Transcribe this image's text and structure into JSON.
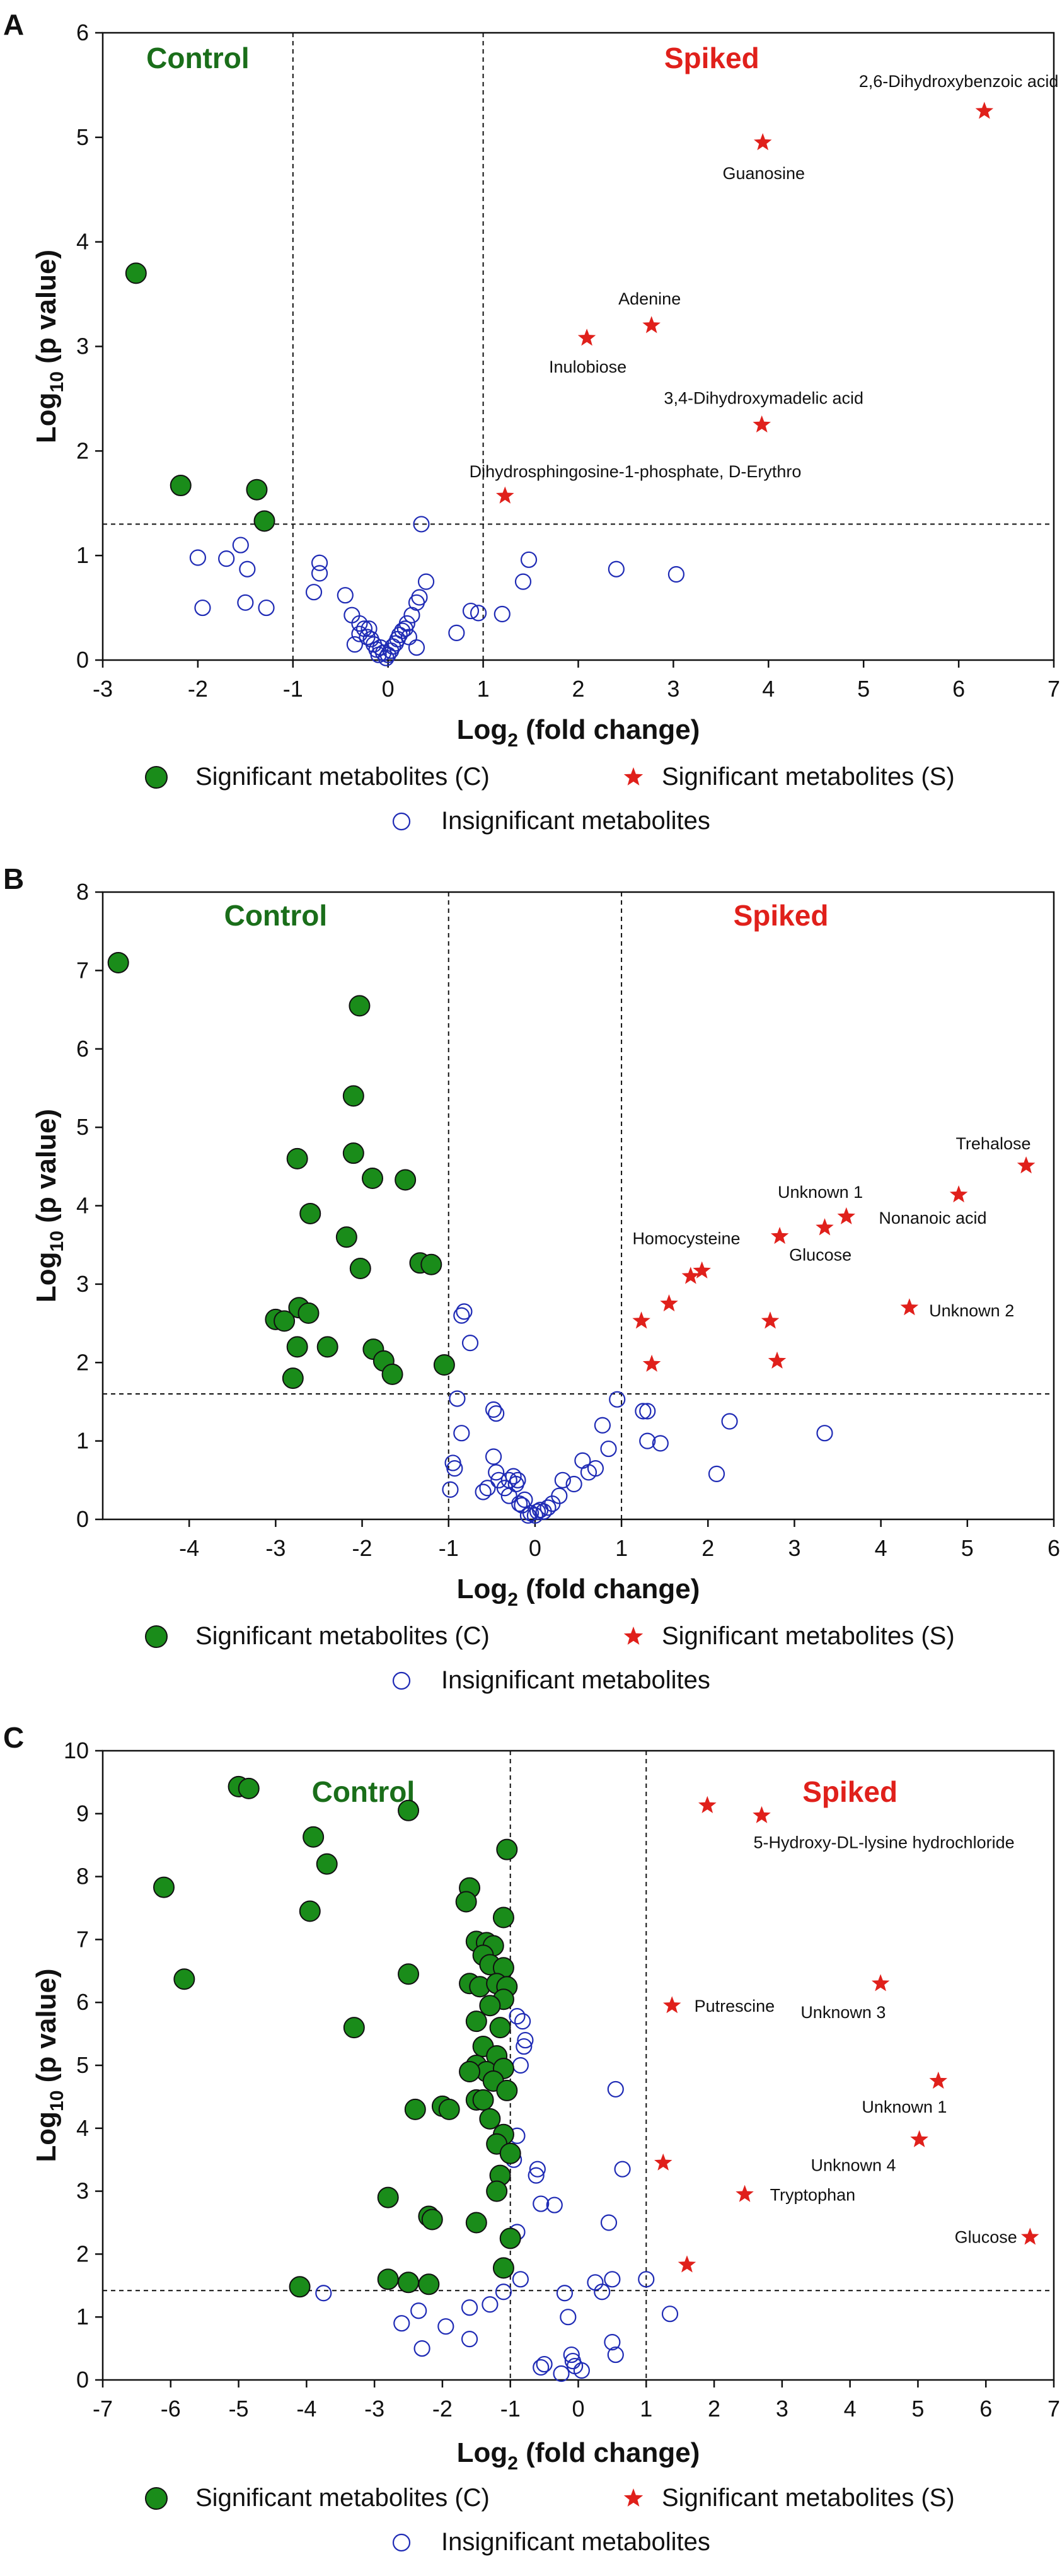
{
  "legend": {
    "control": "Significant metabolites (C)",
    "spiked": "Significant metabolites (S)",
    "insignificant": "Insignificant metabolites"
  },
  "colors": {
    "control": "#1a8c1a",
    "control_text": "#1a6e1a",
    "spiked": "#e0201b",
    "insignificant": "#1f2bb5"
  },
  "chart_data": [
    {
      "type": "scatter",
      "panel": "A",
      "xlabel_main": "Log",
      "xlabel_sub": "2",
      "xlabel_rest": " (fold change)",
      "ylabel_main": "Log",
      "ylabel_sub": "10",
      "ylabel_rest": " (p value)",
      "xlim": [
        -3,
        7
      ],
      "ylim": [
        0,
        6
      ],
      "xticks": [
        -3,
        -2,
        -1,
        0,
        1,
        2,
        3,
        4,
        5,
        6,
        7
      ],
      "yticks": [
        0,
        1,
        2,
        3,
        4,
        5,
        6
      ],
      "vlines": [
        -1,
        1
      ],
      "hline": 1.3,
      "control_label": "Control",
      "spiked_label": "Spiked",
      "control_points": [
        [
          -2.65,
          3.7
        ],
        [
          -2.18,
          1.67
        ],
        [
          -1.38,
          1.63
        ],
        [
          -1.3,
          1.33
        ]
      ],
      "spiked_points": [
        [
          6.27,
          5.25
        ],
        [
          3.94,
          4.95
        ],
        [
          2.77,
          3.2
        ],
        [
          2.09,
          3.08
        ],
        [
          3.93,
          2.25
        ],
        [
          1.23,
          1.57
        ]
      ],
      "annotations": [
        {
          "text": "2,6-Dihydroxybenzoic acid",
          "x": 6.0,
          "y": 5.48,
          "anchor": "middle"
        },
        {
          "text": "Guanosine",
          "x": 3.95,
          "y": 4.6,
          "anchor": "middle"
        },
        {
          "text": "Adenine",
          "x": 2.75,
          "y": 3.4,
          "anchor": "middle"
        },
        {
          "text": "Inulobiose",
          "x": 2.1,
          "y": 2.75,
          "anchor": "middle"
        },
        {
          "text": "3,4-Dihydroxymadelic acid",
          "x": 3.95,
          "y": 2.45,
          "anchor": "middle"
        },
        {
          "text": "Dihydrosphingosine-1-phosphate, D-Erythro",
          "x": 2.6,
          "y": 1.75,
          "anchor": "middle"
        }
      ],
      "insignificant_points": [
        [
          -2.0,
          0.98
        ],
        [
          -1.55,
          1.1
        ],
        [
          -1.7,
          0.97
        ],
        [
          -1.48,
          0.87
        ],
        [
          -1.95,
          0.5
        ],
        [
          -1.5,
          0.55
        ],
        [
          -1.28,
          0.5
        ],
        [
          -0.72,
          0.93
        ],
        [
          -0.72,
          0.83
        ],
        [
          -0.78,
          0.65
        ],
        [
          -0.45,
          0.62
        ],
        [
          -0.38,
          0.43
        ],
        [
          -0.3,
          0.35
        ],
        [
          -0.25,
          0.3
        ],
        [
          -0.22,
          0.22
        ],
        [
          -0.18,
          0.2
        ],
        [
          -0.15,
          0.15
        ],
        [
          -0.12,
          0.1
        ],
        [
          -0.1,
          0.05
        ],
        [
          -0.08,
          0.12
        ],
        [
          -0.05,
          0.07
        ],
        [
          -0.02,
          0.02
        ],
        [
          0.0,
          0.05
        ],
        [
          0.03,
          0.09
        ],
        [
          0.05,
          0.13
        ],
        [
          0.08,
          0.16
        ],
        [
          0.1,
          0.2
        ],
        [
          0.12,
          0.24
        ],
        [
          0.15,
          0.28
        ],
        [
          0.18,
          0.3
        ],
        [
          0.2,
          0.35
        ],
        [
          0.25,
          0.43
        ],
        [
          0.3,
          0.55
        ],
        [
          0.33,
          0.6
        ],
        [
          0.35,
          1.3
        ],
        [
          0.4,
          0.75
        ],
        [
          -0.3,
          0.25
        ],
        [
          -0.2,
          0.3
        ],
        [
          0.22,
          0.22
        ],
        [
          -0.35,
          0.15
        ],
        [
          0.3,
          0.12
        ],
        [
          0.72,
          0.26
        ],
        [
          0.87,
          0.47
        ],
        [
          0.95,
          0.45
        ],
        [
          1.2,
          0.44
        ],
        [
          1.42,
          0.75
        ],
        [
          1.48,
          0.96
        ],
        [
          2.4,
          0.87
        ],
        [
          3.03,
          0.82
        ]
      ]
    },
    {
      "type": "scatter",
      "panel": "B",
      "xlabel_main": "Log",
      "xlabel_sub": "2",
      "xlabel_rest": " (fold change)",
      "ylabel_main": "Log",
      "ylabel_sub": "10",
      "ylabel_rest": " (p value)",
      "xlim": [
        -5,
        6
      ],
      "ylim": [
        0,
        8
      ],
      "xticks": [
        -4,
        -3,
        -2,
        -1,
        0,
        1,
        2,
        3,
        4,
        5,
        6
      ],
      "yticks": [
        0,
        1,
        2,
        3,
        4,
        5,
        6,
        7,
        8
      ],
      "vlines": [
        -1,
        1
      ],
      "hline": 1.6,
      "control_label": "Control",
      "spiked_label": "Spiked",
      "control_points": [
        [
          -4.82,
          7.1
        ],
        [
          -2.03,
          6.55
        ],
        [
          -2.1,
          5.4
        ],
        [
          -2.1,
          4.67
        ],
        [
          -2.75,
          4.6
        ],
        [
          -1.88,
          4.35
        ],
        [
          -1.5,
          4.33
        ],
        [
          -2.6,
          3.9
        ],
        [
          -2.18,
          3.6
        ],
        [
          -2.02,
          3.2
        ],
        [
          -1.33,
          3.27
        ],
        [
          -1.2,
          3.25
        ],
        [
          -2.73,
          2.7
        ],
        [
          -2.62,
          2.63
        ],
        [
          -3.0,
          2.55
        ],
        [
          -2.9,
          2.53
        ],
        [
          -2.75,
          2.2
        ],
        [
          -2.4,
          2.2
        ],
        [
          -1.87,
          2.17
        ],
        [
          -1.75,
          2.02
        ],
        [
          -1.65,
          1.85
        ],
        [
          -2.8,
          1.8
        ],
        [
          -1.05,
          1.97
        ]
      ],
      "spiked_points": [
        [
          5.68,
          4.51
        ],
        [
          4.9,
          4.14
        ],
        [
          3.6,
          3.86
        ],
        [
          3.35,
          3.72
        ],
        [
          2.83,
          3.61
        ],
        [
          1.93,
          3.17
        ],
        [
          1.8,
          3.1
        ],
        [
          1.55,
          2.75
        ],
        [
          4.33,
          2.7
        ],
        [
          1.23,
          2.53
        ],
        [
          2.72,
          2.53
        ],
        [
          1.35,
          1.98
        ],
        [
          2.8,
          2.02
        ]
      ],
      "annotations": [
        {
          "text": "Trehalose",
          "x": 5.3,
          "y": 4.72,
          "anchor": "middle"
        },
        {
          "text": "Unknown 1",
          "x": 3.3,
          "y": 4.1,
          "anchor": "middle"
        },
        {
          "text": "Nonanoic acid",
          "x": 4.6,
          "y": 3.77,
          "anchor": "middle"
        },
        {
          "text": "Homocysteine",
          "x": 1.75,
          "y": 3.51,
          "anchor": "middle"
        },
        {
          "text": "Glucose",
          "x": 3.3,
          "y": 3.3,
          "anchor": "middle"
        },
        {
          "text": "Unknown 2",
          "x": 5.05,
          "y": 2.59,
          "anchor": "middle"
        }
      ],
      "insignificant_points": [
        [
          -0.95,
          0.72
        ],
        [
          -0.93,
          0.65
        ],
        [
          -0.98,
          0.38
        ],
        [
          -0.9,
          1.54
        ],
        [
          -0.82,
          2.65
        ],
        [
          -0.85,
          2.6
        ],
        [
          -0.75,
          2.25
        ],
        [
          -0.85,
          1.1
        ],
        [
          -0.6,
          0.35
        ],
        [
          -0.55,
          0.4
        ],
        [
          -0.45,
          1.35
        ],
        [
          -0.48,
          1.4
        ],
        [
          -0.48,
          0.8
        ],
        [
          -0.45,
          0.6
        ],
        [
          -0.42,
          0.5
        ],
        [
          -0.35,
          0.4
        ],
        [
          -0.3,
          0.3
        ],
        [
          -0.3,
          0.5
        ],
        [
          -0.25,
          0.55
        ],
        [
          -0.22,
          0.45
        ],
        [
          -0.2,
          0.5
        ],
        [
          -0.18,
          0.2
        ],
        [
          -0.15,
          0.18
        ],
        [
          -0.12,
          0.25
        ],
        [
          -0.08,
          0.05
        ],
        [
          -0.05,
          0.08
        ],
        [
          0.0,
          0.05
        ],
        [
          0.03,
          0.1
        ],
        [
          0.06,
          0.12
        ],
        [
          0.1,
          0.1
        ],
        [
          0.15,
          0.15
        ],
        [
          0.2,
          0.2
        ],
        [
          0.28,
          0.3
        ],
        [
          0.32,
          0.5
        ],
        [
          0.45,
          0.45
        ],
        [
          0.55,
          0.75
        ],
        [
          0.62,
          0.6
        ],
        [
          0.7,
          0.65
        ],
        [
          0.78,
          1.2
        ],
        [
          0.85,
          0.9
        ],
        [
          0.95,
          1.53
        ],
        [
          1.25,
          1.38
        ],
        [
          1.3,
          1.38
        ],
        [
          1.3,
          1.0
        ],
        [
          1.45,
          0.97
        ],
        [
          2.1,
          0.58
        ],
        [
          2.25,
          1.25
        ],
        [
          3.35,
          1.1
        ]
      ]
    },
    {
      "type": "scatter",
      "panel": "C",
      "xlabel_main": "Log",
      "xlabel_sub": "2",
      "xlabel_rest": " (fold change)",
      "ylabel_main": "Log",
      "ylabel_sub": "10",
      "ylabel_rest": " (p value)",
      "xlim": [
        -7,
        7
      ],
      "ylim": [
        0,
        10
      ],
      "xticks": [
        -7,
        -6,
        -5,
        -4,
        -3,
        -2,
        -1,
        0,
        1,
        2,
        3,
        4,
        5,
        6,
        7
      ],
      "yticks": [
        0,
        1,
        2,
        3,
        4,
        5,
        6,
        7,
        8,
        9,
        10
      ],
      "vlines": [
        -1,
        1
      ],
      "hline": 1.42,
      "control_label": "Control",
      "spiked_label": "Spiked",
      "control_points": [
        [
          -5.0,
          9.43
        ],
        [
          -4.85,
          9.4
        ],
        [
          -2.5,
          9.05
        ],
        [
          -3.9,
          8.63
        ],
        [
          -3.7,
          8.2
        ],
        [
          -6.1,
          7.83
        ],
        [
          -3.95,
          7.45
        ],
        [
          -5.8,
          6.37
        ],
        [
          -2.5,
          6.45
        ],
        [
          -3.3,
          5.6
        ],
        [
          -2.4,
          4.3
        ],
        [
          -2.0,
          4.35
        ],
        [
          -1.9,
          4.3
        ],
        [
          -2.8,
          2.9
        ],
        [
          -2.2,
          2.6
        ],
        [
          -2.15,
          2.55
        ],
        [
          -4.1,
          1.48
        ],
        [
          -2.8,
          1.6
        ],
        [
          -2.5,
          1.55
        ],
        [
          -2.2,
          1.52
        ],
        [
          -1.05,
          8.43
        ],
        [
          -1.6,
          7.82
        ],
        [
          -1.65,
          7.6
        ],
        [
          -1.1,
          7.35
        ],
        [
          -1.5,
          6.97
        ],
        [
          -1.35,
          6.95
        ],
        [
          -1.25,
          6.9
        ],
        [
          -1.4,
          6.75
        ],
        [
          -1.3,
          6.6
        ],
        [
          -1.1,
          6.55
        ],
        [
          -1.6,
          6.3
        ],
        [
          -1.45,
          6.25
        ],
        [
          -1.2,
          6.3
        ],
        [
          -1.05,
          6.25
        ],
        [
          -1.1,
          6.05
        ],
        [
          -1.3,
          5.95
        ],
        [
          -1.5,
          5.7
        ],
        [
          -1.15,
          5.6
        ],
        [
          -1.4,
          5.3
        ],
        [
          -1.2,
          5.15
        ],
        [
          -1.5,
          5.0
        ],
        [
          -1.35,
          4.9
        ],
        [
          -1.1,
          4.95
        ],
        [
          -1.6,
          4.9
        ],
        [
          -1.25,
          4.75
        ],
        [
          -1.05,
          4.6
        ],
        [
          -1.5,
          4.45
        ],
        [
          -1.4,
          4.45
        ],
        [
          -1.3,
          4.15
        ],
        [
          -1.1,
          3.9
        ],
        [
          -1.2,
          3.75
        ],
        [
          -1.0,
          3.6
        ],
        [
          -1.15,
          3.25
        ],
        [
          -1.2,
          3.0
        ],
        [
          -1.5,
          2.5
        ],
        [
          -1.0,
          2.25
        ],
        [
          -1.1,
          1.78
        ]
      ],
      "spiked_points": [
        [
          1.9,
          9.13
        ],
        [
          2.7,
          8.97
        ],
        [
          4.45,
          6.3
        ],
        [
          1.38,
          5.95
        ],
        [
          5.3,
          4.75
        ],
        [
          5.02,
          3.82
        ],
        [
          1.25,
          3.45
        ],
        [
          2.45,
          2.95
        ],
        [
          6.65,
          2.27
        ],
        [
          1.6,
          1.83
        ]
      ],
      "annotations": [
        {
          "text": "5-Hydroxy-DL-lysine hydrochloride",
          "x": 4.5,
          "y": 8.45,
          "anchor": "middle"
        },
        {
          "text": "Putrescine",
          "x": 2.3,
          "y": 5.85,
          "anchor": "middle"
        },
        {
          "text": "Unknown 3",
          "x": 3.9,
          "y": 5.75,
          "anchor": "middle"
        },
        {
          "text": "Unknown 1",
          "x": 4.8,
          "y": 4.25,
          "anchor": "middle"
        },
        {
          "text": "Unknown 4",
          "x": 4.05,
          "y": 3.32,
          "anchor": "middle"
        },
        {
          "text": "Tryptophan",
          "x": 3.45,
          "y": 2.85,
          "anchor": "middle"
        },
        {
          "text": "Glucose",
          "x": 6.0,
          "y": 2.18,
          "anchor": "middle"
        }
      ],
      "insignificant_points": [
        [
          -3.75,
          1.38
        ],
        [
          -2.6,
          0.9
        ],
        [
          -2.35,
          1.1
        ],
        [
          -2.3,
          0.5
        ],
        [
          -1.95,
          0.85
        ],
        [
          -1.6,
          0.65
        ],
        [
          -1.6,
          1.15
        ],
        [
          -1.3,
          1.2
        ],
        [
          -1.1,
          1.4
        ],
        [
          -0.9,
          5.78
        ],
        [
          -0.82,
          5.7
        ],
        [
          -0.8,
          5.3
        ],
        [
          -0.78,
          5.4
        ],
        [
          -0.85,
          5.0
        ],
        [
          -0.9,
          3.88
        ],
        [
          -0.95,
          3.5
        ],
        [
          -0.6,
          3.35
        ],
        [
          -0.62,
          3.25
        ],
        [
          -0.55,
          2.8
        ],
        [
          -0.35,
          2.78
        ],
        [
          -0.9,
          2.35
        ],
        [
          -0.85,
          1.6
        ],
        [
          -0.5,
          0.25
        ],
        [
          -0.55,
          0.2
        ],
        [
          -0.25,
          0.1
        ],
        [
          -0.2,
          1.38
        ],
        [
          -0.15,
          1.0
        ],
        [
          -0.1,
          0.4
        ],
        [
          -0.08,
          0.3
        ],
        [
          -0.05,
          0.22
        ],
        [
          0.05,
          0.15
        ],
        [
          0.25,
          1.55
        ],
        [
          0.35,
          1.4
        ],
        [
          0.5,
          1.6
        ],
        [
          0.55,
          4.62
        ],
        [
          0.65,
          3.35
        ],
        [
          0.45,
          2.5
        ],
        [
          0.5,
          0.6
        ],
        [
          0.55,
          0.4
        ],
        [
          1.0,
          1.6
        ],
        [
          1.35,
          1.05
        ]
      ]
    }
  ]
}
